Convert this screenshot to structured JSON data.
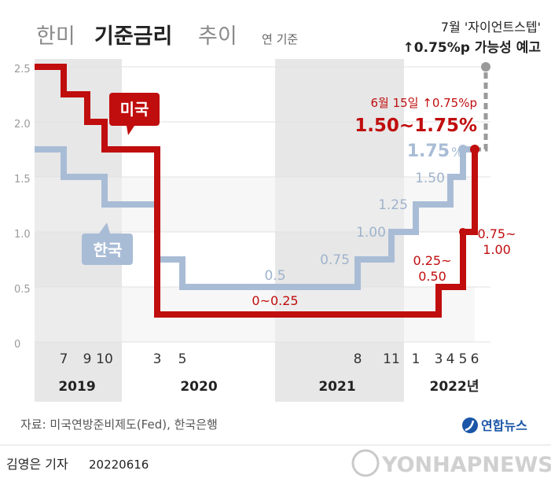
{
  "header": {
    "title_part1": "한미",
    "title_part2": "기준금리",
    "title_part3": "추이",
    "subtitle": "연 기준"
  },
  "forecast": {
    "line1": "7월 '자이언트스텝'",
    "line2": "↑0.75%p 가능성 예고"
  },
  "annotation": {
    "us_change": "6월 15일 ↑0.75%p",
    "us_rate": "1.50~1.75%",
    "kr_rate_num": "1.75",
    "kr_rate_unit": "%"
  },
  "series_labels": {
    "us": "미국",
    "kr": "한국"
  },
  "footer": {
    "source": "자료: 미국연방준비제도(Fed), 한국은행",
    "brand": "연합뉴스",
    "author": "김영은 기자",
    "date": "20220616",
    "watermark": "YONHAPNEWS"
  },
  "colors": {
    "us": "#c00d0d",
    "kr": "#a9bcd6",
    "band": "#e7e7e7"
  },
  "chart_data": {
    "type": "line",
    "step": true,
    "ylim": [
      0,
      2.5
    ],
    "yticks": [
      "0",
      "0.5",
      "1.0",
      "1.5",
      "2.0",
      "2.5"
    ],
    "x_months": [
      "7",
      "9",
      "10",
      "3",
      "5",
      "8",
      "11",
      "1",
      "3",
      "4",
      "5",
      "6"
    ],
    "x_years": [
      "2019",
      "2020",
      "2021",
      "2022년"
    ],
    "series": [
      {
        "name": "미국",
        "x": [
          "2019-01",
          "2019-07",
          "2019-09",
          "2019-10",
          "2020-03",
          "2020-03",
          "2022-03",
          "2022-05",
          "2022-06",
          "2022-06-15"
        ],
        "values": [
          2.5,
          2.25,
          2.0,
          1.75,
          1.25,
          0.25,
          0.5,
          1.0,
          1.0,
          1.75
        ],
        "labels": [
          {
            "x": "2020-08",
            "value": 0.25,
            "text": "0~0.25"
          },
          {
            "x": "2022-03",
            "value": 0.5,
            "text": "0.25~\n0.50"
          },
          {
            "x": "2022-05",
            "value": 1.0,
            "text": "0.75~\n1.00"
          }
        ]
      },
      {
        "name": "한국",
        "x": [
          "2019-01",
          "2019-07",
          "2019-10",
          "2020-03",
          "2020-05",
          "2021-08",
          "2021-11",
          "2022-01",
          "2022-04",
          "2022-05"
        ],
        "values": [
          1.75,
          1.5,
          1.25,
          0.75,
          0.5,
          0.75,
          1.0,
          1.25,
          1.5,
          1.75
        ],
        "labels": [
          {
            "x": "2020-12",
            "value": 0.5,
            "text": "0.5"
          },
          {
            "x": "2021-08",
            "value": 0.75,
            "text": "0.75"
          },
          {
            "x": "2021-11",
            "value": 1.0,
            "text": "1.00"
          },
          {
            "x": "2022-01",
            "value": 1.25,
            "text": "1.25"
          },
          {
            "x": "2022-04",
            "value": 1.5,
            "text": "1.50"
          }
        ]
      }
    ],
    "forecast": {
      "x": "2022-07",
      "from": 1.75,
      "to": 2.5
    }
  }
}
